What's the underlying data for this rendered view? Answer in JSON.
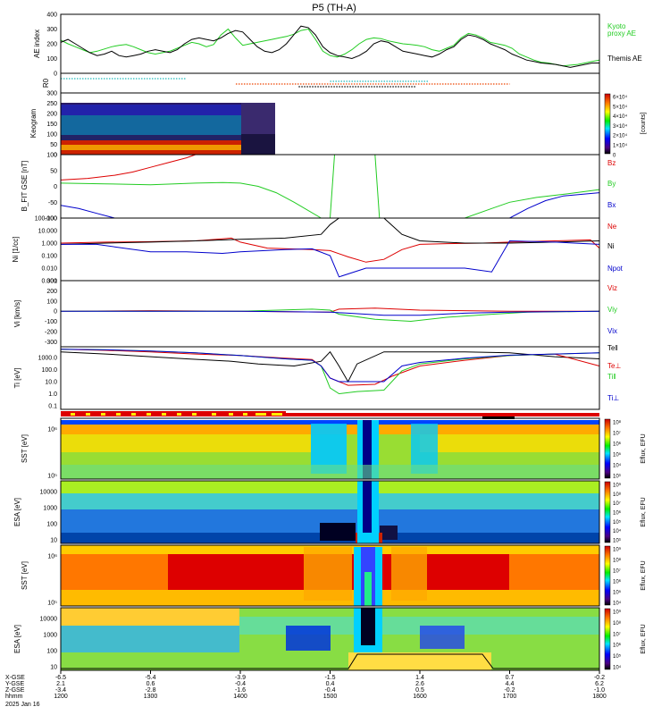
{
  "chart_data": {
    "type": "line",
    "title": "P5 (TH-A)",
    "date_label": "2025 Jan 16",
    "time_axis": {
      "range_hhmm": [
        "12:00",
        "18:00"
      ],
      "ticks": [
        "1200",
        "1300",
        "1400",
        "1500",
        "1600",
        "1700",
        "1800"
      ],
      "row_labels": [
        "X-GSE",
        "Y-GSE",
        "Z-GSE",
        "hhmm"
      ],
      "x_gse": [
        "-6.5",
        "-5.4",
        "-3.9",
        "-1.5",
        "1.4",
        "0.7",
        "-0.2"
      ],
      "y_gse": [
        "2.1",
        "0.6",
        "-0.4",
        "0.4",
        "2.6",
        "4.4",
        "6.2"
      ],
      "z_gse": [
        "-3.4",
        "-2.8",
        "-1.6",
        "-0.4",
        "0.5",
        "-0.2",
        "-1.0"
      ]
    },
    "panels": [
      {
        "ylabel": "AE index",
        "ylim": [
          0,
          400
        ],
        "yticks": [
          "400",
          "300",
          "200",
          "100",
          "0"
        ],
        "series": [
          {
            "name": "Kyoto proxy AE",
            "color": "#22cc22",
            "values": [
              225,
              200,
              180,
              160,
              140,
              150,
              165,
              180,
              190,
              195,
              180,
              160,
              140,
              130,
              140,
              150,
              170,
              190,
              210,
              200,
              180,
              195,
              260,
              300,
              240,
              190,
              200,
              210,
              220,
              230,
              240,
              250,
              265,
              290,
              300,
              230,
              150,
              120,
              110,
              130,
              160,
              200,
              230,
              240,
              235,
              220,
              210,
              200,
              195,
              190,
              180,
              160,
              150,
              170,
              190,
              240,
              270,
              260,
              240,
              210,
              200,
              190,
              170,
              130,
              110,
              90,
              75,
              70,
              60,
              50,
              55,
              60,
              70,
              80,
              90
            ]
          },
          {
            "name": "Themis AE",
            "color": "#000000",
            "values": [
              210,
              230,
              200,
              170,
              140,
              120,
              130,
              150,
              120,
              110,
              120,
              130,
              150,
              160,
              150,
              140,
              160,
              200,
              230,
              240,
              230,
              220,
              240,
              270,
              290,
              280,
              230,
              180,
              150,
              140,
              160,
              200,
              260,
              320,
              310,
              260,
              180,
              140,
              120,
              110,
              100,
              120,
              150,
              200,
              220,
              210,
              180,
              150,
              140,
              130,
              120,
              110,
              130,
              160,
              180,
              230,
              260,
              250,
              230,
              200,
              180,
              160,
              130,
              110,
              90,
              80,
              70,
              65,
              60,
              50,
              40,
              50,
              60,
              70,
              70
            ]
          }
        ]
      },
      {
        "ylabel": "R0",
        "markers": [
          {
            "color": "#22bbbb",
            "from": 12.0,
            "to": 13.4
          },
          {
            "color": "#22bbbb",
            "from": 15.0,
            "to": 16.1
          },
          {
            "color": "#ee4400",
            "from": 13.95,
            "to": 17.0
          },
          {
            "color": "#000000",
            "from": 14.65,
            "to": 15.95
          }
        ]
      },
      {
        "ylabel": "Keogram",
        "ylim": [
          0,
          300
        ],
        "yticks": [
          "300",
          "250",
          "200",
          "150",
          "100",
          "50",
          "0"
        ],
        "colorbar_label": "[counts]",
        "colorbar_ticks": [
          "6×10⁴",
          "5×10⁴",
          "4×10⁴",
          "3×10⁴",
          "2×10⁴",
          "1×10⁴",
          "0"
        ],
        "coverage_hours": [
          12.0,
          14.2
        ]
      },
      {
        "ylabel": "B_FIT GSE [nT]",
        "ylim": [
          -100,
          100
        ],
        "yticks": [
          "100",
          "50",
          "0",
          "-50",
          "-100"
        ],
        "series": [
          {
            "name": "Bz",
            "color": "#dd0000",
            "x": [
              12.0,
              12.3,
              12.6,
              12.8,
              13.0,
              13.2,
              13.4,
              13.5
            ],
            "y": [
              20,
              25,
              35,
              45,
              60,
              75,
              90,
              100
            ]
          },
          {
            "name": "By",
            "color": "#22cc22",
            "x": [
              12.0,
              12.5,
              13.0,
              13.5,
              13.8,
              14.0,
              14.2,
              14.4,
              14.6,
              14.9,
              15.0,
              15.05,
              15.5,
              15.55,
              16.5,
              16.8,
              17.0,
              17.3,
              17.6,
              18.0
            ],
            "y": [
              10,
              8,
              5,
              10,
              12,
              10,
              0,
              -20,
              -50,
              -100,
              -100,
              100,
              100,
              -100,
              -100,
              -70,
              -50,
              -35,
              -25,
              -10
            ]
          },
          {
            "name": "Bx",
            "color": "#0000cc",
            "x": [
              12.0,
              12.2,
              12.4,
              12.6,
              17.0,
              17.2,
              17.4,
              17.6,
              18.0
            ],
            "y": [
              -60,
              -70,
              -85,
              -100,
              -100,
              -70,
              -45,
              -30,
              -20
            ]
          }
        ]
      },
      {
        "ylabel": "Ni [1/cc]",
        "scale": "log",
        "ylim": [
          0.001,
          100
        ],
        "yticks": [
          "100.000",
          "10.000",
          "1.000",
          "0.100",
          "0.010",
          "0.001"
        ],
        "series": [
          {
            "name": "Ne",
            "color": "#dd0000",
            "x": [
              12.0,
              12.5,
              13.0,
              13.5,
              13.9,
              14.0,
              14.3,
              14.8,
              15.0,
              15.2,
              15.4,
              15.6,
              15.8,
              16.0,
              16.3,
              16.7,
              17.0,
              17.5,
              17.9,
              18.0
            ],
            "y": [
              1,
              1.2,
              1.3,
              1.5,
              2.5,
              1.2,
              0.4,
              0.3,
              0.25,
              0.08,
              0.03,
              0.05,
              0.3,
              0.8,
              0.9,
              1.0,
              1.2,
              1.5,
              1.8,
              0.4
            ]
          },
          {
            "name": "Ni",
            "color": "#000000",
            "x": [
              12.0,
              12.5,
              13.0,
              13.5,
              14.0,
              14.5,
              14.9,
              15.0,
              15.1,
              15.2,
              15.6,
              15.8,
              16.0,
              16.5,
              17.0,
              17.5,
              18.0
            ],
            "y": [
              0.8,
              1.0,
              1.2,
              1.5,
              2,
              2.5,
              5,
              30,
              100,
              100,
              100,
              5,
              1.5,
              1.0,
              1.0,
              1.2,
              1.5
            ]
          },
          {
            "name": "Npot",
            "color": "#0000cc",
            "x": [
              12.0,
              12.4,
              12.6,
              13.0,
              13.4,
              13.8,
              14.0,
              14.5,
              14.8,
              15.0,
              15.1,
              15.4,
              15.8,
              16.0,
              16.5,
              16.8,
              17.0,
              17.5,
              18.0
            ],
            "y": [
              0.8,
              0.8,
              0.5,
              0.2,
              0.2,
              0.15,
              0.2,
              0.3,
              0.35,
              0.1,
              0.002,
              0.01,
              0.01,
              0.01,
              0.01,
              0.005,
              1.5,
              1.2,
              0.8
            ]
          }
        ]
      },
      {
        "ylabel": "Vi [km/s]",
        "ylim": [
          -350,
          300
        ],
        "yticks": [
          "300",
          "200",
          "100",
          "0",
          "-100",
          "-200",
          "-300"
        ],
        "series": [
          {
            "name": "Viz",
            "color": "#dd0000",
            "x": [
              12.0,
              13.0,
              14.0,
              15.0,
              15.1,
              15.5,
              16.0,
              17.0,
              18.0
            ],
            "y": [
              0,
              5,
              0,
              -10,
              20,
              30,
              10,
              0,
              0
            ]
          },
          {
            "name": "Viy",
            "color": "#22cc22",
            "x": [
              12.0,
              13.0,
              14.0,
              14.8,
              15.0,
              15.1,
              15.5,
              15.9,
              16.3,
              16.8,
              17.2,
              18.0
            ],
            "y": [
              0,
              0,
              0,
              20,
              10,
              -30,
              -80,
              -100,
              -60,
              -30,
              -10,
              0
            ]
          },
          {
            "name": "Vix",
            "color": "#0000cc",
            "x": [
              12.0,
              13.0,
              14.0,
              15.0,
              15.2,
              15.6,
              16.0,
              16.5,
              17.0,
              18.0
            ],
            "y": [
              0,
              0,
              0,
              -10,
              -20,
              -40,
              -40,
              -20,
              -10,
              0
            ]
          }
        ]
      },
      {
        "ylabel": "Ti [eV]",
        "scale": "log",
        "ylim": [
          0.05,
          8000
        ],
        "yticks": [
          "1000.0",
          "100.0",
          "10.0",
          "1.0",
          "0.1"
        ],
        "series": [
          {
            "name": "Te‖",
            "color": "#000000",
            "x": [
              12.0,
              12.5,
              13.0,
              13.4,
              13.9,
              14.2,
              14.6,
              14.9,
              15.0,
              15.1,
              15.2,
              15.3,
              15.6,
              16.0,
              16.5,
              17.0,
              17.5,
              18.0
            ],
            "y": [
              3000,
              2000,
              1200,
              800,
              500,
              300,
              200,
              500,
              3000,
              200,
              10,
              300,
              3000,
              3000,
              3000,
              2500,
              1200,
              800
            ]
          },
          {
            "name": "Te⊥",
            "color": "#dd0000",
            "x": [
              12.0,
              12.5,
              13.0,
              13.5,
              14.0,
              14.5,
              14.8,
              14.9,
              15.0,
              15.2,
              15.5,
              15.7,
              16.0,
              16.5,
              17.0,
              17.5,
              18.0
            ],
            "y": [
              5000,
              4000,
              3000,
              2000,
              1500,
              900,
              700,
              200,
              20,
              5,
              6,
              30,
              200,
              600,
              1500,
              2000,
              200
            ]
          },
          {
            "name": "Ti‖",
            "color": "#22cc22",
            "x": [
              12.0,
              12.5,
              13.0,
              13.5,
              14.0,
              14.5,
              14.8,
              14.9,
              15.0,
              15.1,
              15.3,
              15.6,
              15.8,
              16.0,
              16.5,
              17.0,
              17.5,
              18.0
            ],
            "y": [
              5000,
              4500,
              3500,
              2500,
              1500,
              800,
              600,
              200,
              3,
              1,
              1.5,
              2,
              80,
              300,
              800,
              1500,
              2000,
              2500
            ]
          },
          {
            "name": "Ti⊥",
            "color": "#0000cc",
            "x": [
              12.0,
              12.5,
              13.0,
              13.5,
              14.0,
              14.5,
              14.8,
              14.9,
              15.0,
              15.1,
              15.3,
              15.6,
              15.8,
              16.0,
              16.5,
              17.0,
              17.5,
              18.0
            ],
            "y": [
              5000,
              4500,
              3500,
              2500,
              1500,
              800,
              600,
              200,
              20,
              10,
              10,
              10,
              200,
              400,
              900,
              1600,
              2000,
              2500
            ]
          }
        ]
      },
      {
        "ylabel": "SST [eV]",
        "ytick_labels": [
          "10⁶",
          "10⁵"
        ],
        "colorbar_label": "Eflux, EFU",
        "colorbar_ticks": [
          "10⁸",
          "10⁷",
          "10⁶",
          "10⁵",
          "10⁴",
          "10³"
        ],
        "type": "heatmap"
      },
      {
        "ylabel": "ESA [eV]",
        "ytick_labels": [
          "10000",
          "1000",
          "100",
          "10"
        ],
        "colorbar_label": "Eflux, EFU",
        "colorbar_ticks": [
          "10⁹",
          "10⁸",
          "10⁷",
          "10⁶",
          "10⁵",
          "10⁴",
          "10³"
        ],
        "type": "heatmap"
      },
      {
        "ylabel": "SST [eV]",
        "ytick_labels": [
          "10⁶",
          "10⁵"
        ],
        "colorbar_label": "Eflux, EFU",
        "colorbar_ticks": [
          "10⁹",
          "10⁸",
          "10⁷",
          "10⁶",
          "10⁵",
          "10⁴"
        ],
        "type": "heatmap"
      },
      {
        "ylabel": "ESA [eV]",
        "ytick_labels": [
          "10000",
          "1000",
          "100",
          "10"
        ],
        "colorbar_label": "Eflux, EFU",
        "colorbar_ticks": [
          "10⁹",
          "10⁸",
          "10⁷",
          "10⁶",
          "10⁵",
          "10⁴"
        ],
        "type": "heatmap"
      }
    ]
  },
  "legend_labels": {
    "kyoto": "Kyoto",
    "proxy": "proxy AE",
    "themis": "Themis AE"
  },
  "colors": {
    "red": "#dd0000",
    "green": "#22cc22",
    "blue": "#0000cc",
    "black": "#000000",
    "yellow": "#ffee00"
  }
}
